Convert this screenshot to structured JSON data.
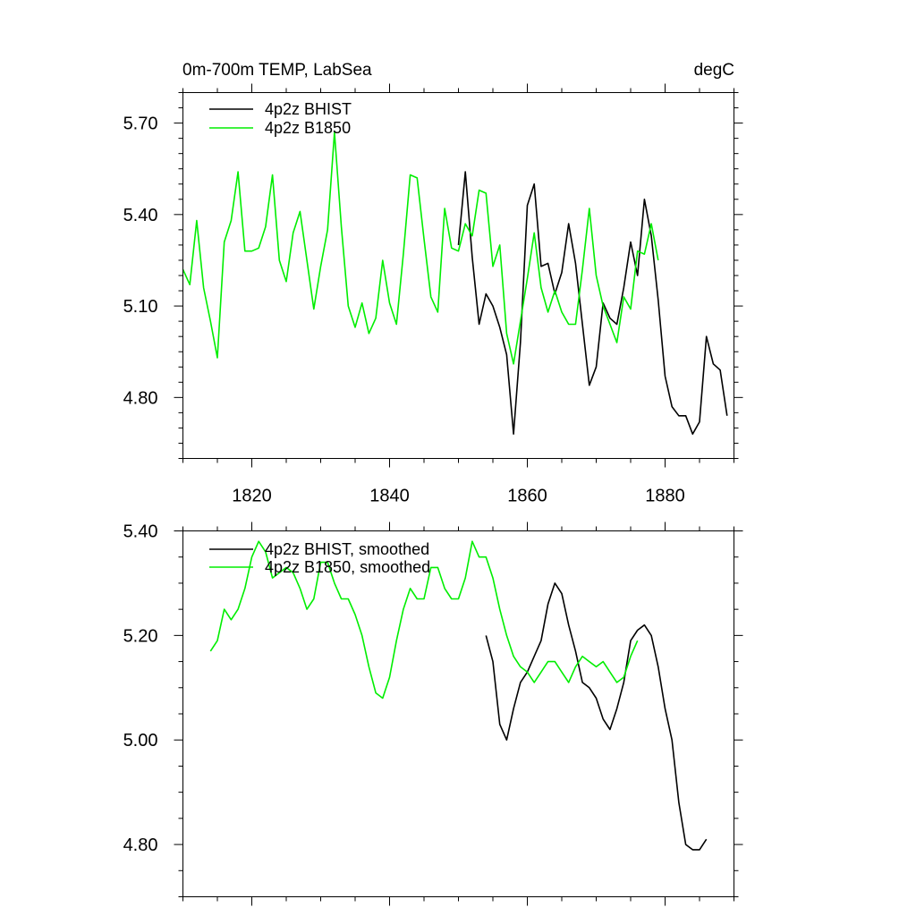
{
  "colors": {
    "bhist": "#000000",
    "b1850": "#00ee00"
  },
  "chart_data": [
    {
      "type": "line",
      "title": "0m-700m TEMP, LabSea",
      "units": "degC",
      "xlim": [
        1810,
        1890
      ],
      "ylim": [
        4.6,
        5.8
      ],
      "xticks": [
        1820,
        1840,
        1860,
        1880
      ],
      "xticklabels": [
        "1820",
        "1840",
        "1860",
        "1880"
      ],
      "yticks": [
        4.8,
        5.1,
        5.4,
        5.7
      ],
      "yticklabels": [
        "4.80",
        "5.10",
        "5.40",
        "5.70"
      ],
      "legend_position": "top-left",
      "series": [
        {
          "name": "4p2z BHIST",
          "color": "bhist",
          "x": [
            1850,
            1851,
            1852,
            1853,
            1854,
            1855,
            1856,
            1857,
            1858,
            1859,
            1860,
            1861,
            1862,
            1863,
            1864,
            1865,
            1866,
            1867,
            1868,
            1869,
            1870,
            1871,
            1872,
            1873,
            1874,
            1875,
            1876,
            1877,
            1878,
            1879,
            1880,
            1881,
            1882,
            1883,
            1884,
            1885,
            1886,
            1887,
            1888,
            1889
          ],
          "y": [
            5.3,
            5.54,
            5.26,
            5.04,
            5.14,
            5.1,
            5.03,
            4.94,
            4.68,
            4.98,
            5.43,
            5.5,
            5.23,
            5.24,
            5.14,
            5.21,
            5.37,
            5.24,
            5.04,
            4.84,
            4.9,
            5.11,
            5.06,
            5.04,
            5.16,
            5.31,
            5.2,
            5.45,
            5.33,
            5.12,
            4.87,
            4.77,
            4.74,
            4.74,
            4.68,
            4.72,
            5.0,
            4.91,
            4.89,
            4.74
          ]
        },
        {
          "name": "4p2z B1850",
          "color": "b1850",
          "x": [
            1810,
            1811,
            1812,
            1813,
            1814,
            1815,
            1816,
            1817,
            1818,
            1819,
            1820,
            1821,
            1822,
            1823,
            1824,
            1825,
            1826,
            1827,
            1828,
            1829,
            1830,
            1831,
            1832,
            1833,
            1834,
            1835,
            1836,
            1837,
            1838,
            1839,
            1840,
            1841,
            1842,
            1843,
            1844,
            1845,
            1846,
            1847,
            1848,
            1849,
            1850,
            1851,
            1852,
            1853,
            1854,
            1855,
            1856,
            1857,
            1858,
            1859,
            1860,
            1861,
            1862,
            1863,
            1864,
            1865,
            1866,
            1867,
            1868,
            1869,
            1870,
            1871,
            1872,
            1873,
            1874,
            1875,
            1876,
            1877,
            1878,
            1879
          ],
          "y": [
            5.22,
            5.17,
            5.38,
            5.16,
            5.05,
            4.93,
            5.31,
            5.38,
            5.54,
            5.28,
            5.28,
            5.29,
            5.36,
            5.53,
            5.25,
            5.18,
            5.34,
            5.41,
            5.25,
            5.09,
            5.23,
            5.35,
            5.67,
            5.36,
            5.1,
            5.03,
            5.11,
            5.01,
            5.06,
            5.25,
            5.11,
            5.04,
            5.27,
            5.53,
            5.52,
            5.32,
            5.13,
            5.08,
            5.42,
            5.29,
            5.28,
            5.37,
            5.33,
            5.48,
            5.47,
            5.23,
            5.3,
            5.01,
            4.91,
            5.05,
            5.19,
            5.34,
            5.16,
            5.08,
            5.15,
            5.08,
            5.04,
            5.04,
            5.22,
            5.42,
            5.2,
            5.1,
            5.04,
            4.98,
            5.13,
            5.09,
            5.28,
            5.27,
            5.37,
            5.25
          ]
        }
      ]
    },
    {
      "type": "line",
      "xlim": [
        1810,
        1890
      ],
      "ylim": [
        4.7,
        5.4
      ],
      "xticks": [
        1820,
        1840,
        1860,
        1880
      ],
      "yticks": [
        4.8,
        5.0,
        5.2,
        5.4
      ],
      "yticklabels": [
        "4.80",
        "5.00",
        "5.20",
        "5.40"
      ],
      "legend_position": "top-left",
      "series": [
        {
          "name": "4p2z BHIST, smoothed",
          "color": "bhist",
          "x": [
            1854,
            1855,
            1856,
            1857,
            1858,
            1859,
            1860,
            1861,
            1862,
            1863,
            1864,
            1865,
            1866,
            1867,
            1868,
            1869,
            1870,
            1871,
            1872,
            1873,
            1874,
            1875,
            1876,
            1877,
            1878,
            1879,
            1880,
            1881,
            1882,
            1883,
            1884,
            1885,
            1886
          ],
          "y": [
            5.2,
            5.15,
            5.03,
            5.0,
            5.06,
            5.11,
            5.13,
            5.16,
            5.19,
            5.26,
            5.3,
            5.28,
            5.22,
            5.17,
            5.11,
            5.1,
            5.08,
            5.04,
            5.02,
            5.06,
            5.11,
            5.19,
            5.21,
            5.22,
            5.2,
            5.14,
            5.06,
            5.0,
            4.88,
            4.8,
            4.79,
            4.79,
            4.81
          ]
        },
        {
          "name": "4p2z B1850, smoothed",
          "color": "b1850",
          "x": [
            1814,
            1815,
            1816,
            1817,
            1818,
            1819,
            1820,
            1821,
            1822,
            1823,
            1824,
            1825,
            1826,
            1827,
            1828,
            1829,
            1830,
            1831,
            1832,
            1833,
            1834,
            1835,
            1836,
            1837,
            1838,
            1839,
            1840,
            1841,
            1842,
            1843,
            1844,
            1845,
            1846,
            1847,
            1848,
            1849,
            1850,
            1851,
            1852,
            1853,
            1854,
            1855,
            1856,
            1857,
            1858,
            1859,
            1860,
            1861,
            1862,
            1863,
            1864,
            1865,
            1866,
            1867,
            1868,
            1869,
            1870,
            1871,
            1872,
            1873,
            1874,
            1875,
            1876
          ],
          "y": [
            5.17,
            5.19,
            5.25,
            5.23,
            5.25,
            5.29,
            5.35,
            5.38,
            5.36,
            5.31,
            5.32,
            5.33,
            5.32,
            5.29,
            5.25,
            5.27,
            5.34,
            5.34,
            5.3,
            5.27,
            5.27,
            5.24,
            5.2,
            5.14,
            5.09,
            5.08,
            5.12,
            5.19,
            5.25,
            5.29,
            5.27,
            5.27,
            5.33,
            5.33,
            5.29,
            5.27,
            5.27,
            5.31,
            5.38,
            5.35,
            5.35,
            5.31,
            5.25,
            5.2,
            5.16,
            5.14,
            5.13,
            5.11,
            5.13,
            5.15,
            5.15,
            5.13,
            5.11,
            5.14,
            5.16,
            5.15,
            5.14,
            5.15,
            5.13,
            5.11,
            5.12,
            5.16,
            5.19
          ]
        }
      ]
    }
  ]
}
